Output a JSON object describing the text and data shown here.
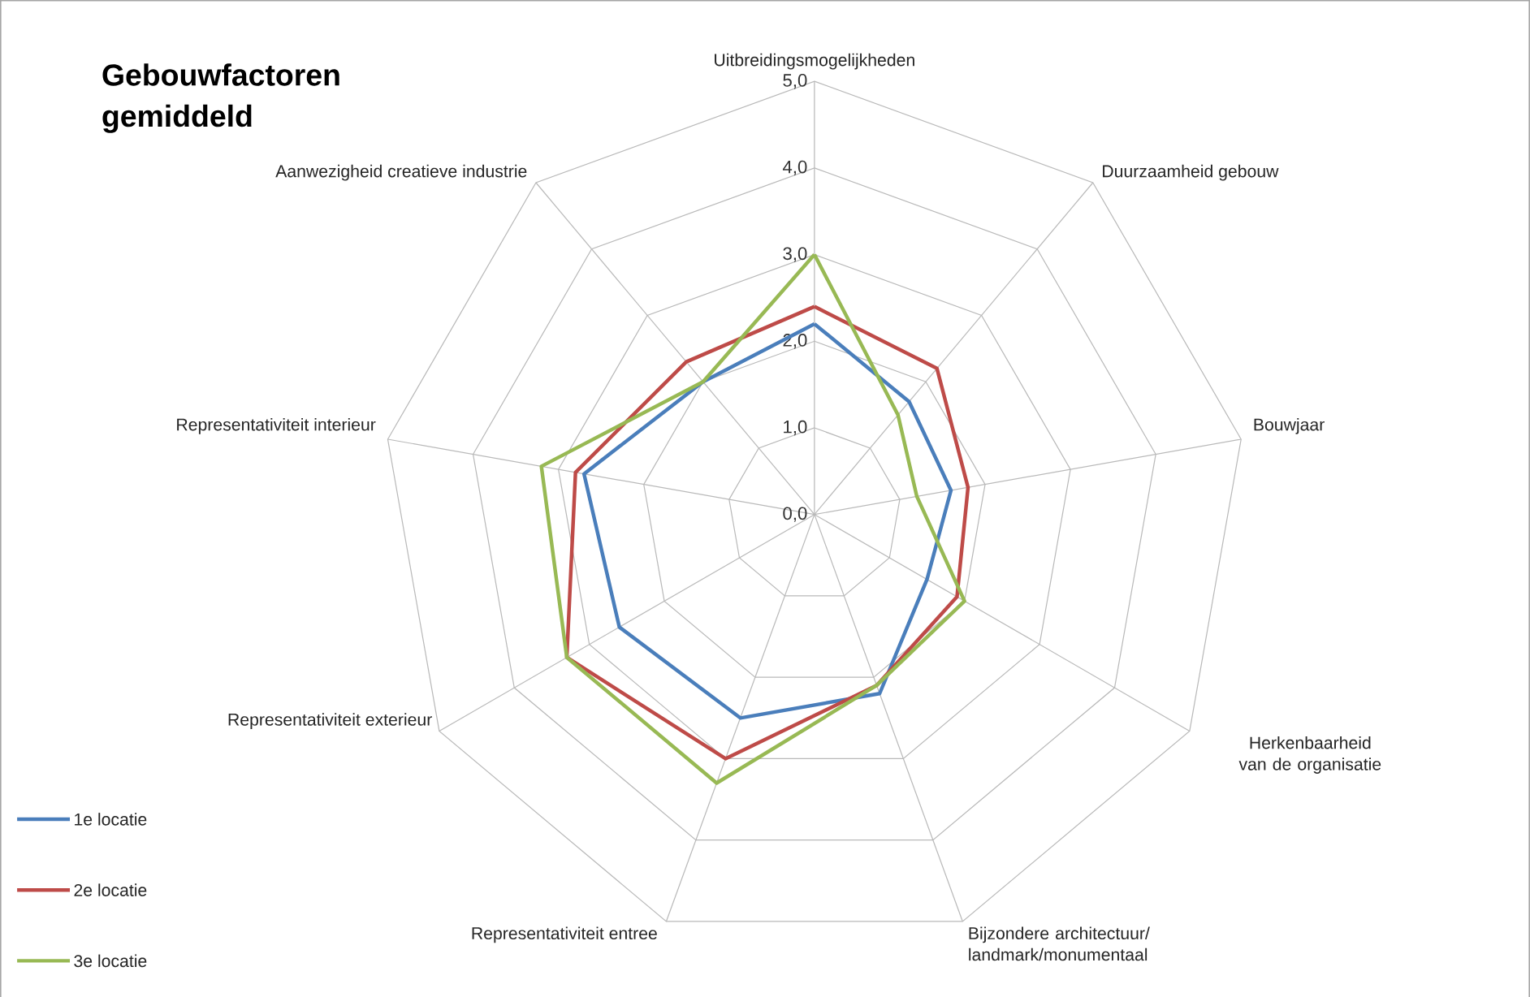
{
  "chart_data": {
    "type": "radar",
    "title": "Gebouwfactoren gemiddeld",
    "categories": [
      "Uitbreidingsmogelijkheden",
      "Duurzaamheid gebouw",
      "Bouwjaar",
      "Herkenbaarheid van de organisatie",
      "Bijzondere architectuur/ landmark/monumentaal",
      "Representativiteit entree",
      "Representativiteit exterieur",
      "Representativiteit interieur",
      "Aanwezigheid creatieve industrie"
    ],
    "series": [
      {
        "name": "1e locatie",
        "color": "#4a7ebb",
        "values": [
          2.2,
          1.7,
          1.6,
          1.5,
          2.2,
          2.5,
          2.6,
          2.7,
          2.0
        ]
      },
      {
        "name": "2e locatie",
        "color": "#be4b48",
        "values": [
          2.4,
          2.2,
          1.8,
          1.9,
          2.1,
          3.0,
          3.3,
          2.8,
          2.3
        ]
      },
      {
        "name": "3e locatie",
        "color": "#98b954",
        "values": [
          3.0,
          1.5,
          1.2,
          2.0,
          2.1,
          3.3,
          3.3,
          3.2,
          2.0
        ]
      }
    ],
    "ylim": [
      0,
      5
    ],
    "yticks": [
      {
        "value": 0,
        "label": "0,0"
      },
      {
        "value": 1,
        "label": "1,0"
      },
      {
        "value": 2,
        "label": "2,0"
      },
      {
        "value": 3,
        "label": "3,0"
      },
      {
        "value": 4,
        "label": "4,0"
      },
      {
        "value": 5,
        "label": "5,0"
      }
    ],
    "grid": true,
    "legend": "bottom left"
  }
}
